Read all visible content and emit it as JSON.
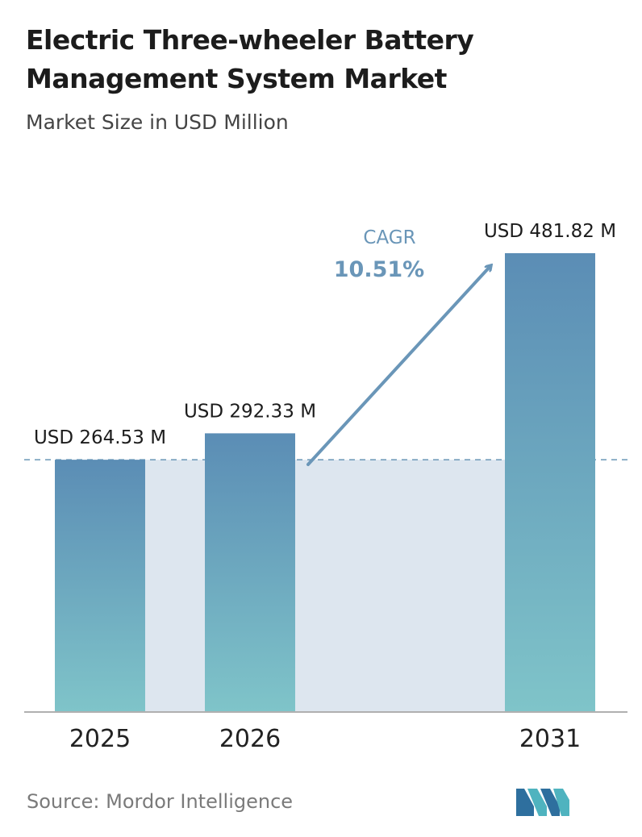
{
  "header": {
    "title": "Electric Three-wheeler Battery Management System Market",
    "subtitle": "Market Size in USD Million"
  },
  "footer": {
    "source": "Source: Mordor Intelligence",
    "logo_icon": "mordor-intelligence-logo"
  },
  "colors": {
    "bar_top": "#5b8db5",
    "bar_bottom": "#7fc4c9",
    "band": "#dde6ef",
    "cagr_arrow": "#6a96b8",
    "dashed_line": "#6a96b8",
    "axis": "#b0b0b0"
  },
  "chart_data": {
    "type": "bar",
    "title": "Electric Three-wheeler Battery Management System Market",
    "subtitle": "Market Size in USD Million",
    "categories": [
      "2025",
      "2026",
      "2031"
    ],
    "values": [
      264.53,
      292.33,
      481.82
    ],
    "value_labels": [
      "USD 264.53 M",
      "USD 292.33 M",
      "USD 481.82 M"
    ],
    "ylim": [
      0,
      481.82
    ],
    "grid": false,
    "cagr": {
      "label": "CAGR",
      "value": "10.51%"
    }
  }
}
